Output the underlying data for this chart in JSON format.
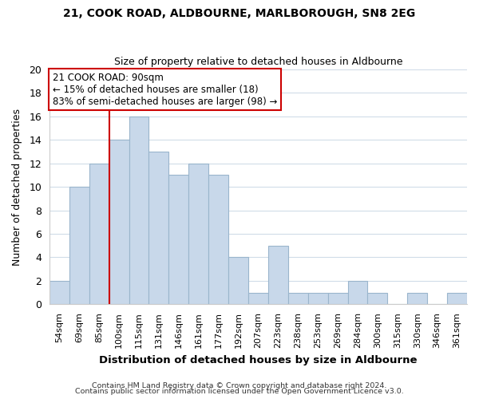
{
  "title": "21, COOK ROAD, ALDBOURNE, MARLBOROUGH, SN8 2EG",
  "subtitle": "Size of property relative to detached houses in Aldbourne",
  "xlabel": "Distribution of detached houses by size in Aldbourne",
  "ylabel": "Number of detached properties",
  "bar_color": "#c8d8ea",
  "bar_edge_color": "#9ab5cc",
  "categories": [
    "54sqm",
    "69sqm",
    "85sqm",
    "100sqm",
    "115sqm",
    "131sqm",
    "146sqm",
    "161sqm",
    "177sqm",
    "192sqm",
    "207sqm",
    "223sqm",
    "238sqm",
    "253sqm",
    "269sqm",
    "284sqm",
    "300sqm",
    "315sqm",
    "330sqm",
    "346sqm",
    "361sqm"
  ],
  "values": [
    2,
    10,
    12,
    14,
    16,
    13,
    11,
    12,
    11,
    4,
    1,
    5,
    1,
    1,
    1,
    2,
    1,
    0,
    1,
    0,
    1
  ],
  "ylim": [
    0,
    20
  ],
  "yticks": [
    0,
    2,
    4,
    6,
    8,
    10,
    12,
    14,
    16,
    18,
    20
  ],
  "property_line_x": 2.5,
  "property_line_color": "#cc0000",
  "annotation_title": "21 COOK ROAD: 90sqm",
  "annotation_line1": "← 15% of detached houses are smaller (18)",
  "annotation_line2": "83% of semi-detached houses are larger (98) →",
  "annotation_box_color": "#ffffff",
  "annotation_box_edge": "#cc0000",
  "footer_line1": "Contains HM Land Registry data © Crown copyright and database right 2024.",
  "footer_line2": "Contains public sector information licensed under the Open Government Licence v3.0.",
  "background_color": "#ffffff",
  "grid_color": "#d0dce8"
}
